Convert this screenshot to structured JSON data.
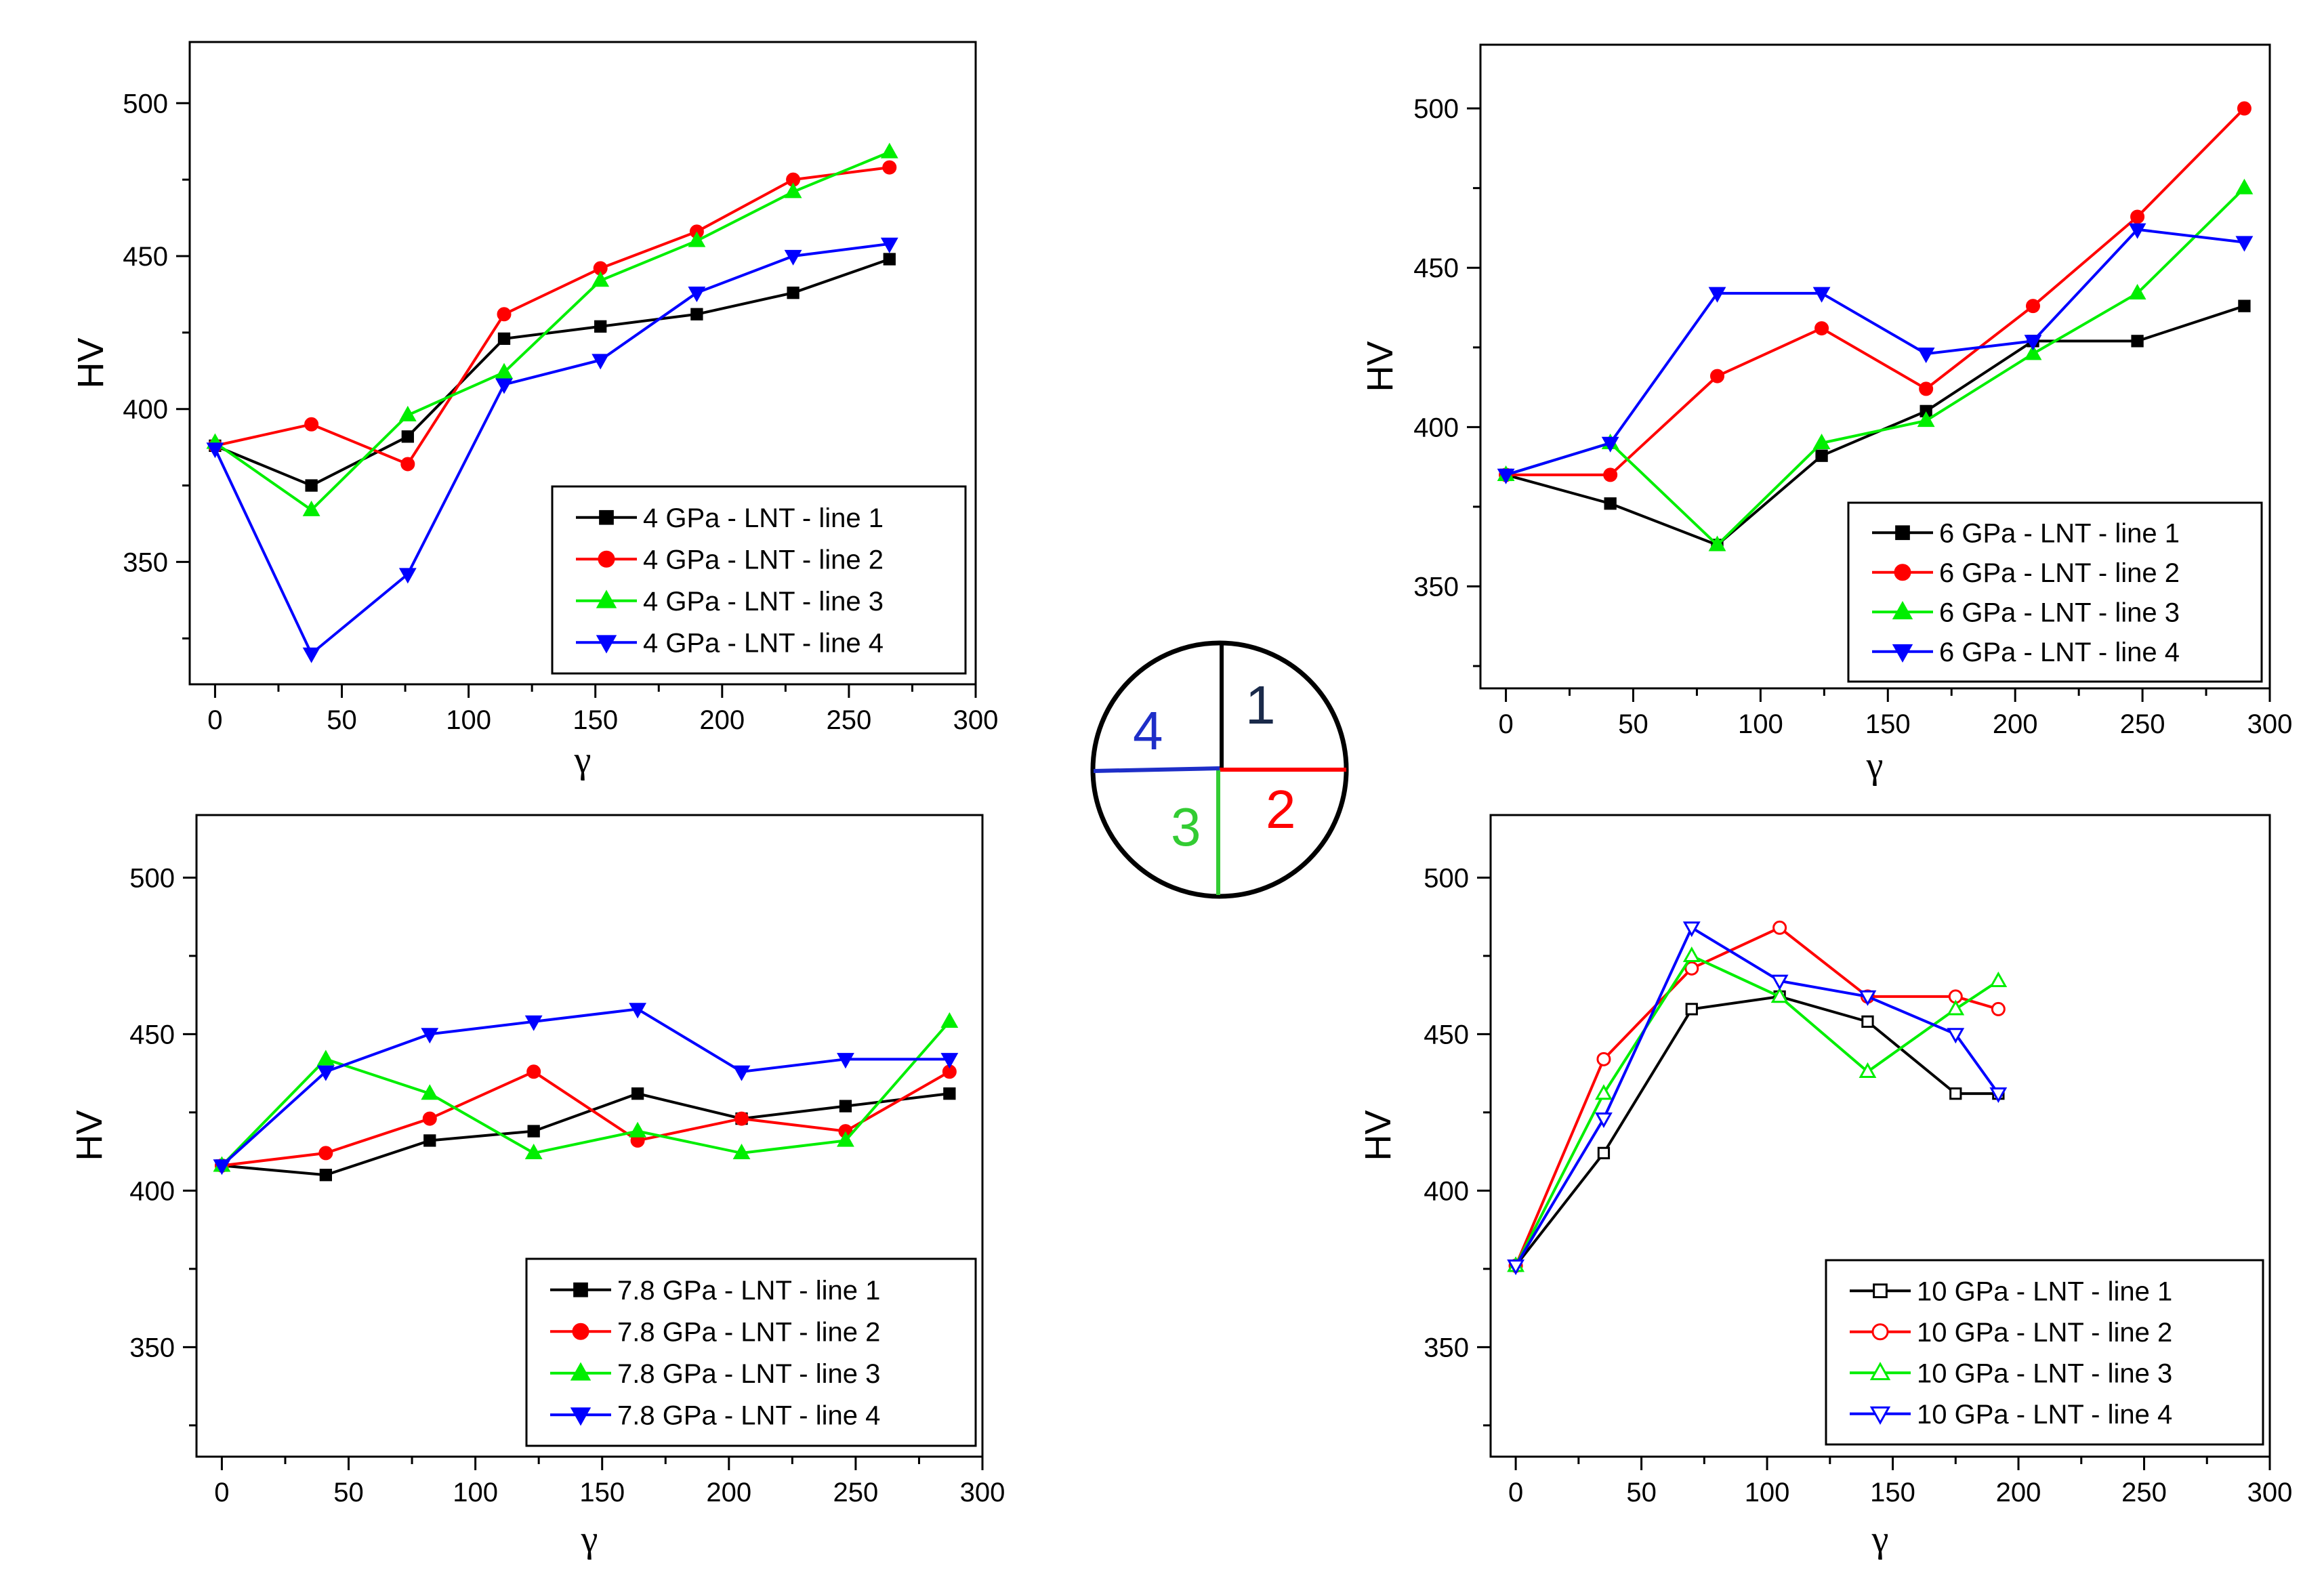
{
  "figure": {
    "colors": {
      "line1": "#000000",
      "line2": "#ff0000",
      "line3": "#00ee00",
      "line4": "#0000ff",
      "axis": "#000000"
    },
    "diagram": {
      "labels": [
        {
          "text": "1",
          "color": "#1a2a4a"
        },
        {
          "text": "2",
          "color": "#ff0000"
        },
        {
          "text": "3",
          "color": "#33cc33"
        },
        {
          "text": "4",
          "color": "#1e2ec8"
        }
      ]
    }
  },
  "chart_data": [
    {
      "type": "line",
      "id": "p1",
      "xlabel": "γ",
      "ylabel": "HV",
      "xlim": [
        -10,
        300
      ],
      "ylim": [
        310,
        520
      ],
      "xticks": [
        0,
        50,
        100,
        150,
        200,
        250,
        300
      ],
      "yticks": [
        350,
        400,
        450,
        500
      ],
      "marker_fill": "filled",
      "legend_position": "bottom-right",
      "series": [
        {
          "name": "4 GPa - LNT - line 1",
          "color": "#000000",
          "marker": "square",
          "x": [
            0,
            38,
            76,
            114,
            152,
            190,
            228,
            266
          ],
          "y": [
            388,
            375,
            391,
            423,
            427,
            431,
            438,
            449
          ]
        },
        {
          "name": "4 GPa - LNT - line 2",
          "color": "#ff0000",
          "marker": "circle",
          "x": [
            0,
            38,
            76,
            114,
            152,
            190,
            228,
            266
          ],
          "y": [
            388,
            395,
            382,
            431,
            446,
            458,
            475,
            479
          ]
        },
        {
          "name": "4 GPa - LNT - line 3",
          "color": "#00ee00",
          "marker": "triangle-up",
          "x": [
            0,
            38,
            76,
            114,
            152,
            190,
            228,
            266
          ],
          "y": [
            389,
            367,
            398,
            412,
            442,
            455,
            471,
            484
          ]
        },
        {
          "name": "4 GPa - LNT - line 4",
          "color": "#0000ff",
          "marker": "triangle-down",
          "x": [
            0,
            38,
            76,
            114,
            152,
            190,
            228,
            266
          ],
          "y": [
            387,
            320,
            346,
            408,
            416,
            438,
            450,
            454
          ]
        }
      ]
    },
    {
      "type": "line",
      "id": "p2",
      "xlabel": "γ",
      "ylabel": "HV",
      "xlim": [
        -10,
        300
      ],
      "ylim": [
        318,
        520
      ],
      "xticks": [
        0,
        50,
        100,
        150,
        200,
        250,
        300
      ],
      "yticks": [
        350,
        400,
        450,
        500
      ],
      "marker_fill": "filled",
      "legend_position": "bottom-right",
      "series": [
        {
          "name": "6 GPa - LNT - line 1",
          "color": "#000000",
          "marker": "square",
          "x": [
            0,
            41,
            83,
            124,
            165,
            207,
            248,
            290
          ],
          "y": [
            385,
            376,
            363,
            391,
            405,
            427,
            427,
            438
          ]
        },
        {
          "name": "6 GPa - LNT - line 2",
          "color": "#ff0000",
          "marker": "circle",
          "x": [
            0,
            41,
            83,
            124,
            165,
            207,
            248,
            290
          ],
          "y": [
            385,
            385,
            416,
            431,
            412,
            438,
            466,
            500
          ]
        },
        {
          "name": "6 GPa - LNT - line 3",
          "color": "#00ee00",
          "marker": "triangle-up",
          "x": [
            0,
            41,
            83,
            124,
            165,
            207,
            248,
            290
          ],
          "y": [
            385,
            395,
            363,
            395,
            402,
            423,
            442,
            475
          ]
        },
        {
          "name": "6 GPa - LNT - line 4",
          "color": "#0000ff",
          "marker": "triangle-down",
          "x": [
            0,
            41,
            83,
            124,
            165,
            207,
            248,
            290
          ],
          "y": [
            385,
            395,
            442,
            442,
            423,
            427,
            462,
            458
          ]
        }
      ]
    },
    {
      "type": "line",
      "id": "p3",
      "xlabel": "γ",
      "ylabel": "HV",
      "xlim": [
        -10,
        300
      ],
      "ylim": [
        315,
        520
      ],
      "xticks": [
        0,
        50,
        100,
        150,
        200,
        250,
        300
      ],
      "yticks": [
        350,
        400,
        450,
        500
      ],
      "marker_fill": "filled",
      "legend_position": "bottom-right",
      "series": [
        {
          "name": "7.8 GPa - LNT - line 1",
          "color": "#000000",
          "marker": "square",
          "x": [
            0,
            41,
            82,
            123,
            164,
            205,
            246,
            287
          ],
          "y": [
            408,
            405,
            416,
            419,
            431,
            423,
            427,
            431
          ]
        },
        {
          "name": "7.8 GPa - LNT - line 2",
          "color": "#ff0000",
          "marker": "circle",
          "x": [
            0,
            41,
            82,
            123,
            164,
            205,
            246,
            287
          ],
          "y": [
            408,
            412,
            423,
            438,
            416,
            423,
            419,
            438
          ]
        },
        {
          "name": "7.8 GPa - LNT - line 3",
          "color": "#00ee00",
          "marker": "triangle-up",
          "x": [
            0,
            41,
            82,
            123,
            164,
            205,
            246,
            287
          ],
          "y": [
            408,
            442,
            431,
            412,
            419,
            412,
            416,
            454
          ]
        },
        {
          "name": "7.8 GPa - LNT - line 4",
          "color": "#0000ff",
          "marker": "triangle-down",
          "x": [
            0,
            41,
            82,
            123,
            164,
            205,
            246,
            287
          ],
          "y": [
            408,
            438,
            450,
            454,
            458,
            438,
            442,
            442
          ]
        }
      ]
    },
    {
      "type": "line",
      "id": "p4",
      "xlabel": "γ",
      "ylabel": "HV",
      "xlim": [
        -10,
        300
      ],
      "ylim": [
        315,
        520
      ],
      "xticks": [
        0,
        50,
        100,
        150,
        200,
        250,
        300
      ],
      "yticks": [
        350,
        400,
        450,
        500
      ],
      "marker_fill": "open",
      "legend_position": "bottom-right",
      "series": [
        {
          "name": "10 GPa - LNT - line 1",
          "color": "#000000",
          "marker": "square",
          "x": [
            0,
            35,
            70,
            105,
            140,
            175,
            192
          ],
          "y": [
            376,
            412,
            458,
            462,
            454,
            431,
            431
          ]
        },
        {
          "name": "10 GPa - LNT - line 2",
          "color": "#ff0000",
          "marker": "circle",
          "x": [
            0,
            35,
            70,
            105,
            140,
            175,
            192
          ],
          "y": [
            376,
            442,
            471,
            484,
            462,
            462,
            458
          ]
        },
        {
          "name": "10 GPa - LNT - line 3",
          "color": "#00ee00",
          "marker": "triangle-up",
          "x": [
            0,
            35,
            70,
            105,
            140,
            175,
            192
          ],
          "y": [
            376,
            431,
            475,
            462,
            438,
            458,
            467
          ]
        },
        {
          "name": "10 GPa - LNT - line 4",
          "color": "#0000ff",
          "marker": "triangle-down",
          "x": [
            0,
            35,
            70,
            105,
            140,
            175,
            192
          ],
          "y": [
            376,
            423,
            484,
            467,
            462,
            450,
            431
          ]
        }
      ]
    }
  ]
}
